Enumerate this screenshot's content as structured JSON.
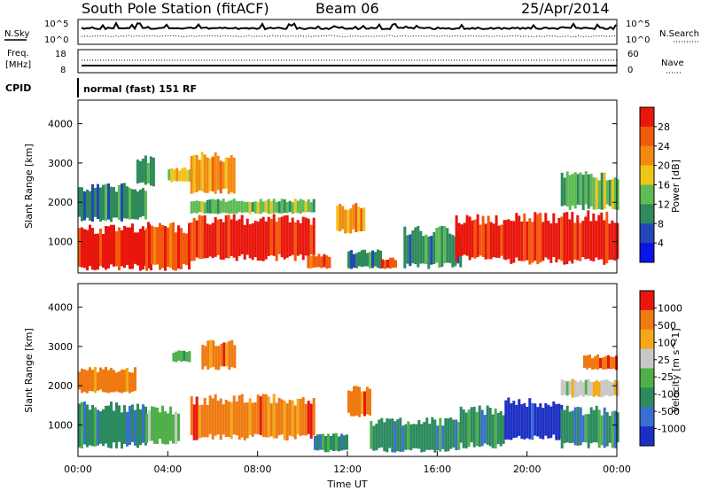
{
  "header": {
    "station": "South Pole Station (fitACF)",
    "beam": "Beam 06",
    "date": "25/Apr/2014"
  },
  "noise_panel": {
    "left_label": "N.Sky",
    "right_label": "N.Search",
    "left_ticks": [
      "10^5",
      "10^0"
    ],
    "right_ticks": [
      "10^5",
      "10^0"
    ]
  },
  "freq_panel": {
    "left_label_1": "Freq.",
    "left_label_2": "[MHz]",
    "right_label": "Nave",
    "left_ticks": [
      "18",
      "8"
    ],
    "right_ticks": [
      "60",
      "0"
    ]
  },
  "cpid": {
    "label": "CPID",
    "text": "normal (fast) 151 RF"
  },
  "colors": {
    "power": [
      "#0b15e8",
      "#2347b8",
      "#2e8a5a",
      "#5fbb55",
      "#f0c419",
      "#f28a10",
      "#f25a0c",
      "#e8160c"
    ],
    "velocity": [
      "#1c2fc4",
      "#3a6fd0",
      "#2b8a5e",
      "#4fb04a",
      "#c8c8c8",
      "#f4a818",
      "#ef7a12",
      "#e8160c"
    ]
  },
  "chart_data": [
    {
      "type": "heatmap",
      "name": "power",
      "ylabel": "Slant Range [km]",
      "y_ticks": [
        1000,
        2000,
        3000,
        4000
      ],
      "ylim": [
        200,
        4600
      ],
      "xlim_hours": [
        0,
        24
      ],
      "colorbar": {
        "label": "Power [dB]",
        "ticks": [
          "4",
          "8",
          "12",
          "16",
          "20",
          "24",
          "28"
        ],
        "range": [
          0,
          32
        ]
      },
      "regions": [
        {
          "t0": 0.0,
          "t1": 3.2,
          "r0": 250,
          "r1": 1500,
          "level": 7
        },
        {
          "t0": 0.0,
          "t1": 3.0,
          "r0": 1500,
          "r1": 2500,
          "level": 2
        },
        {
          "t0": 2.6,
          "t1": 3.4,
          "r0": 2400,
          "r1": 3200,
          "level": 2
        },
        {
          "t0": 3.0,
          "t1": 5.0,
          "r0": 250,
          "r1": 1500,
          "level": 6
        },
        {
          "t0": 4.0,
          "t1": 5.2,
          "r0": 2500,
          "r1": 2900,
          "level": 4
        },
        {
          "t0": 5.0,
          "t1": 7.0,
          "r0": 2200,
          "r1": 3300,
          "level": 5
        },
        {
          "t0": 5.0,
          "t1": 10.5,
          "r0": 500,
          "r1": 1700,
          "level": 7
        },
        {
          "t0": 5.0,
          "t1": 10.5,
          "r0": 1700,
          "r1": 2100,
          "level": 3
        },
        {
          "t0": 10.2,
          "t1": 11.2,
          "r0": 300,
          "r1": 700,
          "level": 6
        },
        {
          "t0": 11.5,
          "t1": 12.8,
          "r0": 1200,
          "r1": 2000,
          "level": 5
        },
        {
          "t0": 12.0,
          "t1": 13.5,
          "r0": 300,
          "r1": 800,
          "level": 2
        },
        {
          "t0": 13.5,
          "t1": 14.2,
          "r0": 300,
          "r1": 600,
          "level": 6
        },
        {
          "t0": 14.5,
          "t1": 17.0,
          "r0": 300,
          "r1": 1400,
          "level": 2
        },
        {
          "t0": 16.8,
          "t1": 19.0,
          "r0": 500,
          "r1": 1700,
          "level": 7
        },
        {
          "t0": 19.0,
          "t1": 24.0,
          "r0": 400,
          "r1": 1800,
          "level": 7
        },
        {
          "t0": 21.5,
          "t1": 24.0,
          "r0": 1800,
          "r1": 2800,
          "level": 3
        }
      ]
    },
    {
      "type": "heatmap",
      "name": "velocity",
      "ylabel": "Slant Range [km]",
      "xlabel": "Time UT",
      "y_ticks": [
        1000,
        2000,
        3000,
        4000
      ],
      "ylim": [
        200,
        4600
      ],
      "x_ticks": [
        "00:00",
        "04:00",
        "08:00",
        "12:00",
        "16:00",
        "20:00",
        "00:00"
      ],
      "colorbar": {
        "label": "Velocity [m s^-1]",
        "ticks": [
          "1000",
          "500",
          "100",
          "25",
          "-25",
          "-100",
          "-500",
          "-1000"
        ]
      },
      "regions": [
        {
          "t0": 0.0,
          "t1": 3.0,
          "r0": 400,
          "r1": 1600,
          "level": 2
        },
        {
          "t0": 0.0,
          "t1": 2.5,
          "r0": 1800,
          "r1": 2500,
          "level": 6
        },
        {
          "t0": 3.0,
          "t1": 4.5,
          "r0": 500,
          "r1": 1500,
          "level": 3
        },
        {
          "t0": 4.2,
          "t1": 5.0,
          "r0": 2600,
          "r1": 2900,
          "level": 3
        },
        {
          "t0": 5.0,
          "t1": 10.5,
          "r0": 600,
          "r1": 1800,
          "level": 6
        },
        {
          "t0": 5.5,
          "t1": 7.0,
          "r0": 2400,
          "r1": 3200,
          "level": 6
        },
        {
          "t0": 10.5,
          "t1": 12.0,
          "r0": 300,
          "r1": 800,
          "level": 2
        },
        {
          "t0": 12.0,
          "t1": 13.0,
          "r0": 1200,
          "r1": 2000,
          "level": 6
        },
        {
          "t0": 13.0,
          "t1": 17.0,
          "r0": 300,
          "r1": 1200,
          "level": 2
        },
        {
          "t0": 17.0,
          "t1": 19.0,
          "r0": 400,
          "r1": 1500,
          "level": 2
        },
        {
          "t0": 19.0,
          "t1": 21.5,
          "r0": 600,
          "r1": 1700,
          "level": 0
        },
        {
          "t0": 21.5,
          "t1": 24.0,
          "r0": 400,
          "r1": 1500,
          "level": 2
        },
        {
          "t0": 21.5,
          "t1": 24.0,
          "r0": 1700,
          "r1": 2200,
          "level": 4
        },
        {
          "t0": 22.5,
          "t1": 24.0,
          "r0": 2400,
          "r1": 2800,
          "level": 6
        }
      ]
    }
  ]
}
